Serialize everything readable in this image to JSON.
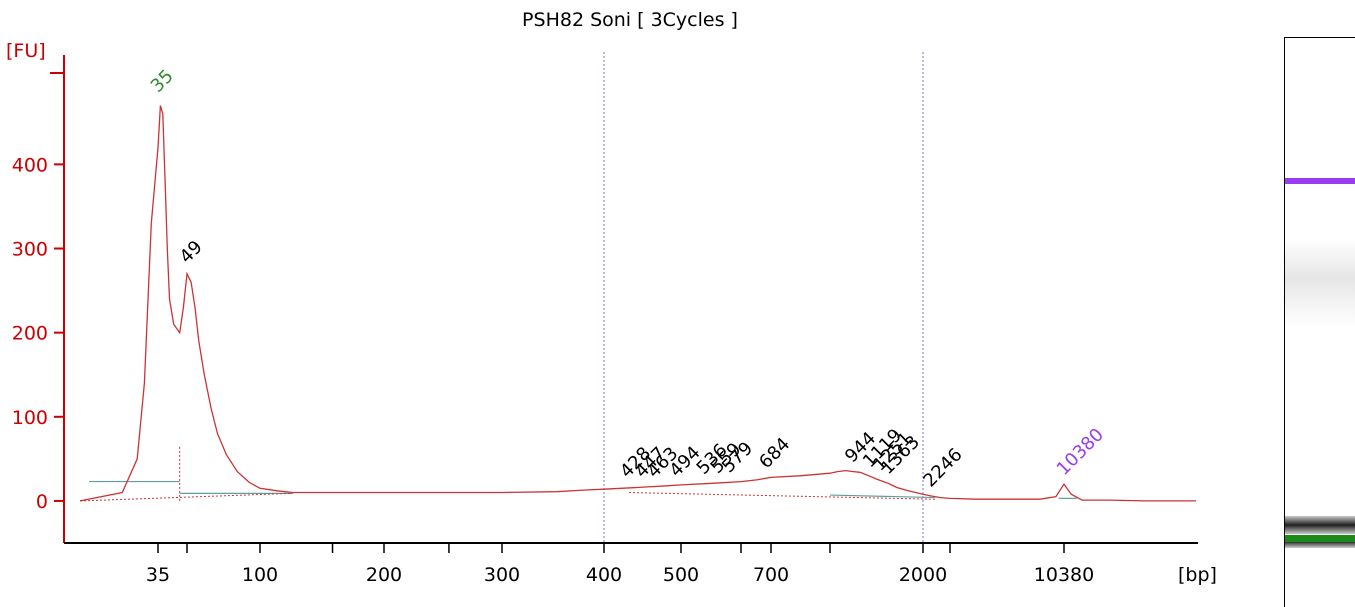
{
  "chart_data": {
    "type": "line",
    "title": "PSH82 Soni  [ 3Cycles ]",
    "ylabel": "[FU]",
    "xlabel": "[bp]",
    "ylim": [
      -50,
      530
    ],
    "y_ticks": [
      "0",
      "100",
      "200",
      "300",
      "400"
    ],
    "x_tick_labels": [
      "35",
      "100",
      "200",
      "300",
      "400",
      "500",
      "700",
      "2000",
      "10380"
    ],
    "grid": false,
    "marker_lines_bp": [
      400,
      2000
    ],
    "series": [
      {
        "color": "#cc3333",
        "x": [
          25,
          30,
          32,
          33,
          34,
          35,
          36,
          37,
          38,
          39,
          40,
          42,
          45,
          47,
          49,
          51,
          53,
          55,
          58,
          62,
          66,
          72,
          80,
          90,
          100,
          110,
          120,
          150,
          200,
          250,
          300,
          350,
          380,
          400,
          420,
          440,
          460,
          480,
          500,
          550,
          600,
          650,
          700,
          750,
          800,
          850,
          900,
          944,
          1000,
          1100,
          1200,
          1363,
          1500,
          1700,
          2000,
          2246,
          2600,
          3000,
          4000,
          6000,
          8000,
          9500,
          10380,
          11000,
          12000,
          15000,
          20000,
          30000
        ],
        "y": [
          0,
          10,
          50,
          140,
          330,
          420,
          470,
          460,
          380,
          300,
          240,
          210,
          200,
          230,
          270,
          260,
          230,
          190,
          150,
          110,
          80,
          55,
          35,
          22,
          15,
          12,
          10,
          10,
          10,
          10,
          10,
          11,
          13,
          14,
          15,
          16,
          17,
          18,
          19,
          21,
          23,
          25,
          28,
          30,
          33,
          35,
          36,
          35,
          34,
          30,
          26,
          21,
          16,
          12,
          8,
          6,
          4,
          3,
          2,
          2,
          2,
          5,
          20,
          8,
          1,
          1,
          0,
          0
        ]
      }
    ],
    "peaks": [
      {
        "label": "35",
        "x": 35,
        "y": 475,
        "color": "#2e8b2e"
      },
      {
        "label": "49",
        "x": 49,
        "y": 272,
        "color": "#000000"
      },
      {
        "label": "428",
        "x": 428,
        "y": 17,
        "color": "#000000"
      },
      {
        "label": "447",
        "x": 447,
        "y": 17,
        "color": "#000000"
      },
      {
        "label": "463",
        "x": 463,
        "y": 17,
        "color": "#000000"
      },
      {
        "label": "494",
        "x": 494,
        "y": 18,
        "color": "#000000"
      },
      {
        "label": "536",
        "x": 536,
        "y": 21,
        "color": "#000000"
      },
      {
        "label": "559",
        "x": 559,
        "y": 22,
        "color": "#000000"
      },
      {
        "label": "579",
        "x": 579,
        "y": 23,
        "color": "#000000"
      },
      {
        "label": "684",
        "x": 684,
        "y": 28,
        "color": "#000000"
      },
      {
        "label": "944",
        "x": 944,
        "y": 35,
        "color": "#000000"
      },
      {
        "label": "1119",
        "x": 1119,
        "y": 29,
        "color": "#000000"
      },
      {
        "label": "1251",
        "x": 1251,
        "y": 25,
        "color": "#000000"
      },
      {
        "label": "1363",
        "x": 1363,
        "y": 21,
        "color": "#000000"
      },
      {
        "label": "2246",
        "x": 2246,
        "y": 6,
        "color": "#000000"
      },
      {
        "label": "10380",
        "x": 10380,
        "y": 20,
        "color": "#9a3cf0"
      }
    ],
    "colors": {
      "axis": "#cc0000",
      "trace": "#cc3333",
      "baseline": "#5f9f9f",
      "marker_line": "#7777cc",
      "ladder_upper": "#9a3cf0",
      "ladder_lower": "#1a8a1a"
    }
  },
  "gel": {
    "bands": [
      {
        "name": "upper-marker",
        "color": "#9a3cf0"
      },
      {
        "name": "lower-marker",
        "color": "#1a8a1a"
      }
    ]
  }
}
